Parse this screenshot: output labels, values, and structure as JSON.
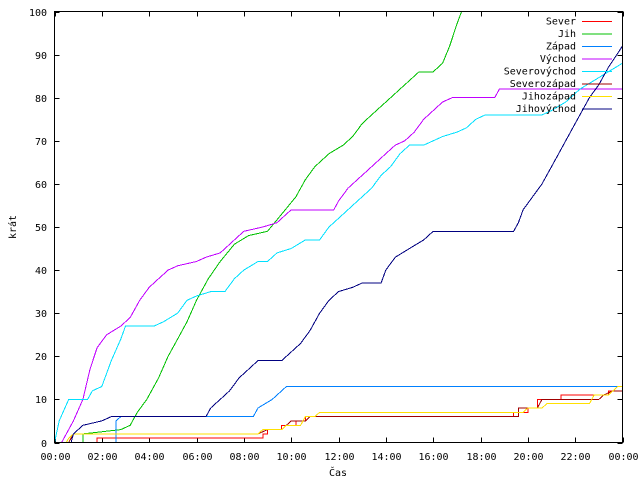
{
  "chart_data": {
    "type": "line",
    "title": "",
    "xlabel": "Čas",
    "ylabel": "krát",
    "xlim": [
      0,
      24
    ],
    "ylim": [
      0,
      100
    ],
    "x_ticks": [
      {
        "value": 0,
        "label": "00:00"
      },
      {
        "value": 2,
        "label": "02:00"
      },
      {
        "value": 4,
        "label": "04:00"
      },
      {
        "value": 6,
        "label": "06:00"
      },
      {
        "value": 8,
        "label": "08:00"
      },
      {
        "value": 10,
        "label": "10:00"
      },
      {
        "value": 12,
        "label": "12:00"
      },
      {
        "value": 14,
        "label": "14:00"
      },
      {
        "value": 16,
        "label": "16:00"
      },
      {
        "value": 18,
        "label": "18:00"
      },
      {
        "value": 20,
        "label": "20:00"
      },
      {
        "value": 22,
        "label": "22:00"
      },
      {
        "value": 24,
        "label": "00:00"
      }
    ],
    "y_ticks": [
      {
        "value": 0,
        "label": "0"
      },
      {
        "value": 10,
        "label": "10"
      },
      {
        "value": 20,
        "label": "20"
      },
      {
        "value": 30,
        "label": "30"
      },
      {
        "value": 40,
        "label": "40"
      },
      {
        "value": 50,
        "label": "50"
      },
      {
        "value": 60,
        "label": "60"
      },
      {
        "value": 70,
        "label": "70"
      },
      {
        "value": 80,
        "label": "80"
      },
      {
        "value": 90,
        "label": "90"
      },
      {
        "value": 100,
        "label": "100"
      }
    ],
    "grid": false,
    "legend_position": "top-right",
    "series": [
      {
        "name": "Sever",
        "color": "#ff0000",
        "points": [
          [
            0,
            0
          ],
          [
            1.8,
            0
          ],
          [
            1.8,
            1
          ],
          [
            8.8,
            1
          ],
          [
            8.8,
            2
          ],
          [
            9.0,
            2
          ],
          [
            9.0,
            3
          ],
          [
            9.6,
            3
          ],
          [
            9.6,
            4
          ],
          [
            10.2,
            4
          ],
          [
            10.2,
            5
          ],
          [
            10.6,
            5
          ],
          [
            10.6,
            6
          ],
          [
            19.4,
            6
          ],
          [
            19.4,
            7
          ],
          [
            20.0,
            7
          ],
          [
            20.0,
            8
          ],
          [
            20.4,
            8
          ],
          [
            20.4,
            10
          ],
          [
            21.4,
            10
          ],
          [
            21.4,
            11
          ],
          [
            23.4,
            11
          ],
          [
            23.4,
            12
          ],
          [
            24,
            12
          ]
        ]
      },
      {
        "name": "Jih",
        "color": "#00c000",
        "points": [
          [
            0,
            0
          ],
          [
            1.2,
            0
          ],
          [
            1.2,
            2
          ],
          [
            2.8,
            3
          ],
          [
            3.2,
            4
          ],
          [
            3.5,
            7
          ],
          [
            3.9,
            10
          ],
          [
            4.4,
            15
          ],
          [
            4.8,
            20
          ],
          [
            5.2,
            24
          ],
          [
            5.6,
            28
          ],
          [
            6.0,
            33
          ],
          [
            6.5,
            38
          ],
          [
            7.0,
            42
          ],
          [
            7.6,
            46
          ],
          [
            8.2,
            48
          ],
          [
            9.0,
            49
          ],
          [
            9.6,
            53
          ],
          [
            10.2,
            57
          ],
          [
            10.6,
            61
          ],
          [
            11.0,
            64
          ],
          [
            11.6,
            67
          ],
          [
            12.2,
            69
          ],
          [
            12.6,
            71
          ],
          [
            13.0,
            74
          ],
          [
            13.4,
            76
          ],
          [
            13.8,
            78
          ],
          [
            14.2,
            80
          ],
          [
            14.6,
            82
          ],
          [
            15.0,
            84
          ],
          [
            15.4,
            86
          ],
          [
            16.0,
            86
          ],
          [
            16.4,
            88
          ],
          [
            16.7,
            92
          ],
          [
            17.0,
            97
          ],
          [
            17.2,
            100
          ]
        ]
      },
      {
        "name": "Západ",
        "color": "#0080ff",
        "points": [
          [
            0,
            0
          ],
          [
            2.6,
            0
          ],
          [
            2.6,
            5
          ],
          [
            2.8,
            6
          ],
          [
            8.4,
            6
          ],
          [
            8.6,
            8
          ],
          [
            8.9,
            9
          ],
          [
            9.2,
            10
          ],
          [
            9.6,
            12
          ],
          [
            9.8,
            13
          ],
          [
            23.4,
            13
          ],
          [
            24,
            13
          ]
        ]
      },
      {
        "name": "Východ",
        "color": "#c000ff",
        "points": [
          [
            0,
            0
          ],
          [
            0.3,
            0
          ],
          [
            0.5,
            2
          ],
          [
            0.8,
            5
          ],
          [
            1.2,
            10
          ],
          [
            1.5,
            17
          ],
          [
            1.8,
            22
          ],
          [
            2.2,
            25
          ],
          [
            2.8,
            27
          ],
          [
            3.2,
            29
          ],
          [
            3.6,
            33
          ],
          [
            4.0,
            36
          ],
          [
            4.4,
            38
          ],
          [
            4.8,
            40
          ],
          [
            5.2,
            41
          ],
          [
            6.0,
            42
          ],
          [
            6.4,
            43
          ],
          [
            7.0,
            44
          ],
          [
            7.6,
            47
          ],
          [
            8.0,
            49
          ],
          [
            8.8,
            50
          ],
          [
            9.4,
            51
          ],
          [
            9.8,
            53
          ],
          [
            10.0,
            54
          ],
          [
            11.8,
            54
          ],
          [
            12.0,
            56
          ],
          [
            12.4,
            59
          ],
          [
            12.8,
            61
          ],
          [
            13.2,
            63
          ],
          [
            13.6,
            65
          ],
          [
            14.0,
            67
          ],
          [
            14.4,
            69
          ],
          [
            14.8,
            70
          ],
          [
            15.2,
            72
          ],
          [
            15.6,
            75
          ],
          [
            16.0,
            77
          ],
          [
            16.4,
            79
          ],
          [
            16.8,
            80
          ],
          [
            18.6,
            80
          ],
          [
            18.8,
            82
          ],
          [
            23.6,
            82
          ],
          [
            24,
            82
          ]
        ]
      },
      {
        "name": "Severovýchod",
        "color": "#00e0ff",
        "points": [
          [
            0,
            0
          ],
          [
            0.2,
            5
          ],
          [
            0.6,
            10
          ],
          [
            1.4,
            10
          ],
          [
            1.6,
            12
          ],
          [
            2.0,
            13
          ],
          [
            2.4,
            19
          ],
          [
            2.8,
            24
          ],
          [
            3.0,
            27
          ],
          [
            4.2,
            27
          ],
          [
            4.6,
            28
          ],
          [
            5.2,
            30
          ],
          [
            5.6,
            33
          ],
          [
            6.0,
            34
          ],
          [
            6.6,
            35
          ],
          [
            7.2,
            35
          ],
          [
            7.6,
            38
          ],
          [
            8.0,
            40
          ],
          [
            8.6,
            42
          ],
          [
            9.0,
            42
          ],
          [
            9.4,
            44
          ],
          [
            10.0,
            45
          ],
          [
            10.6,
            47
          ],
          [
            11.2,
            47
          ],
          [
            11.6,
            50
          ],
          [
            12.2,
            53
          ],
          [
            12.8,
            56
          ],
          [
            13.4,
            59
          ],
          [
            13.8,
            62
          ],
          [
            14.2,
            64
          ],
          [
            14.6,
            67
          ],
          [
            15.0,
            69
          ],
          [
            15.6,
            69
          ],
          [
            16.0,
            70
          ],
          [
            16.4,
            71
          ],
          [
            17.0,
            72
          ],
          [
            17.4,
            73
          ],
          [
            17.8,
            75
          ],
          [
            18.2,
            76
          ],
          [
            20.6,
            76
          ],
          [
            21.0,
            77
          ],
          [
            21.6,
            79
          ],
          [
            22.2,
            82
          ],
          [
            22.8,
            84
          ],
          [
            23.4,
            86
          ],
          [
            24,
            88
          ]
        ]
      },
      {
        "name": "Severozápad",
        "color": "#a00000",
        "points": [
          [
            0,
            0
          ],
          [
            0.6,
            0
          ],
          [
            0.8,
            2
          ],
          [
            8.6,
            2
          ],
          [
            9.0,
            3
          ],
          [
            9.6,
            3
          ],
          [
            10.0,
            5
          ],
          [
            10.6,
            5
          ],
          [
            10.8,
            6
          ],
          [
            19.6,
            6
          ],
          [
            19.6,
            8
          ],
          [
            20.4,
            8
          ],
          [
            20.6,
            10
          ],
          [
            23.0,
            10
          ],
          [
            23.2,
            11
          ],
          [
            23.6,
            12
          ],
          [
            24,
            12
          ]
        ]
      },
      {
        "name": "Jihozápad",
        "color": "#ffe000",
        "points": [
          [
            0,
            0
          ],
          [
            0.5,
            0
          ],
          [
            0.6,
            1
          ],
          [
            0.8,
            2
          ],
          [
            8.6,
            2
          ],
          [
            8.8,
            3
          ],
          [
            9.6,
            3
          ],
          [
            9.8,
            4
          ],
          [
            10.4,
            4
          ],
          [
            10.6,
            6
          ],
          [
            11.0,
            6
          ],
          [
            11.2,
            7
          ],
          [
            19.8,
            7
          ],
          [
            20.0,
            8
          ],
          [
            20.6,
            8
          ],
          [
            20.8,
            9
          ],
          [
            22.6,
            9
          ],
          [
            22.8,
            11
          ],
          [
            23.4,
            11
          ],
          [
            23.8,
            13
          ],
          [
            24,
            13
          ]
        ]
      },
      {
        "name": "Jihovýchod",
        "color": "#000080",
        "points": [
          [
            0,
            0
          ],
          [
            0.7,
            0
          ],
          [
            0.8,
            2
          ],
          [
            1.2,
            4
          ],
          [
            2.0,
            5
          ],
          [
            2.4,
            6
          ],
          [
            6.4,
            6
          ],
          [
            6.6,
            8
          ],
          [
            7.0,
            10
          ],
          [
            7.4,
            12
          ],
          [
            7.8,
            15
          ],
          [
            8.2,
            17
          ],
          [
            8.6,
            19
          ],
          [
            9.6,
            19
          ],
          [
            10.0,
            21
          ],
          [
            10.4,
            23
          ],
          [
            10.8,
            26
          ],
          [
            11.2,
            30
          ],
          [
            11.6,
            33
          ],
          [
            12.0,
            35
          ],
          [
            12.6,
            36
          ],
          [
            13.0,
            37
          ],
          [
            13.8,
            37
          ],
          [
            14.0,
            40
          ],
          [
            14.4,
            43
          ],
          [
            15.0,
            45
          ],
          [
            15.6,
            47
          ],
          [
            16.0,
            49
          ],
          [
            19.4,
            49
          ],
          [
            19.6,
            51
          ],
          [
            19.8,
            54
          ],
          [
            20.2,
            57
          ],
          [
            20.6,
            60
          ],
          [
            21.0,
            64
          ],
          [
            21.4,
            68
          ],
          [
            21.8,
            72
          ],
          [
            22.2,
            76
          ],
          [
            22.6,
            80
          ],
          [
            23.0,
            83
          ],
          [
            23.4,
            87
          ],
          [
            24,
            92
          ]
        ]
      }
    ]
  }
}
